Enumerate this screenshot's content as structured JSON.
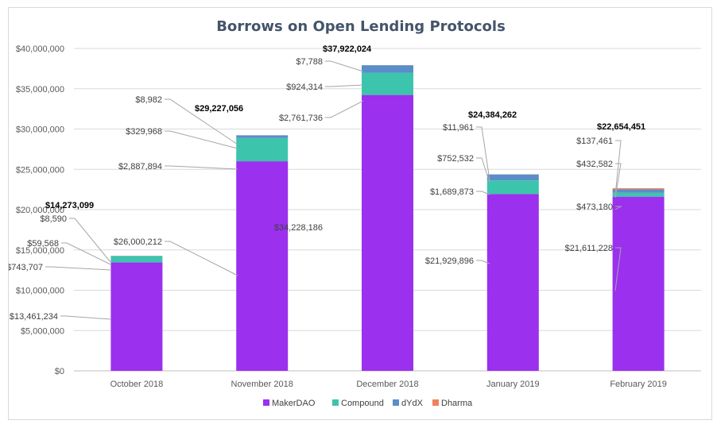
{
  "chart_data": {
    "type": "bar",
    "stacked": true,
    "title": "Borrows on Open Lending Protocols",
    "xlabel": "",
    "ylabel": "",
    "ylim": [
      0,
      40000000
    ],
    "y_tick_values": [
      0,
      5000000,
      10000000,
      15000000,
      20000000,
      25000000,
      30000000,
      35000000,
      40000000
    ],
    "y_tick_labels": [
      "$0",
      "$5,000,000",
      "$10,000,000",
      "$15,000,000",
      "$20,000,000",
      "$25,000,000",
      "$30,000,000",
      "$35,000,000",
      "$40,000,000"
    ],
    "categories": [
      "October 2018",
      "November 2018",
      "December 2018",
      "January 2019",
      "February 2019"
    ],
    "series": [
      {
        "name": "MakerDAO",
        "color": "#9b30ef",
        "values": [
          13461234,
          26000212,
          34228186,
          21929896,
          21611228
        ],
        "labels": [
          "$13,461,234",
          "$26,000,212",
          "$34,228,186",
          "$21,929,896",
          "$21,611,228"
        ]
      },
      {
        "name": "Compound",
        "color": "#3cc5ac",
        "values": [
          743707,
          2887894,
          2761736,
          1689873,
          473180
        ],
        "labels": [
          "$743,707",
          "$2,887,894",
          "$2,761,736",
          "$1,689,873",
          "$473,180"
        ]
      },
      {
        "name": "dYdX",
        "color": "#5b8dc9",
        "values": [
          59568,
          329968,
          924314,
          752532,
          432582
        ],
        "labels": [
          "$59,568",
          "$329,968",
          "$924,314",
          "$752,532",
          "$432,582"
        ]
      },
      {
        "name": "Dharma",
        "color": "#f08060",
        "values": [
          8590,
          8982,
          7788,
          11961,
          137461
        ],
        "labels": [
          "$8,590",
          "$8,982",
          "$7,788",
          "$11,961",
          "$137,461"
        ]
      }
    ],
    "totals": [
      14273099,
      29227056,
      37922024,
      24384262,
      22654451
    ],
    "total_labels": [
      "$14,273,099",
      "$29,227,056",
      "$37,922,024",
      "$24,384,262",
      "$22,654,451"
    ],
    "gridlines": true,
    "legend_position": "bottom"
  }
}
